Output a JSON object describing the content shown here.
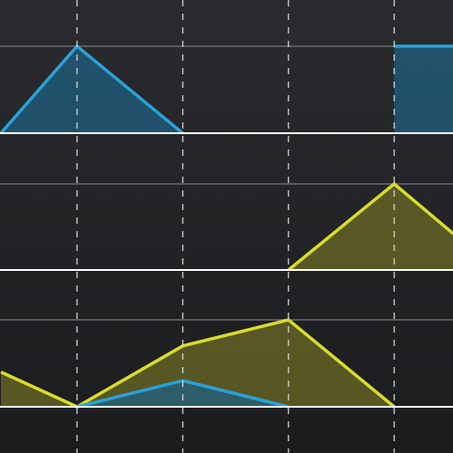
{
  "colors": {
    "background_top": "#2a2b2e",
    "background_bottom": "#1b1c1e",
    "blue": "#2aa1d8",
    "blue_fill": "#1f5f80",
    "yellow": "#d9dc2e",
    "yellow_fill": "#6b6b25",
    "band_guide": "#6a6b6e",
    "baseline": "#ffffff",
    "vertical_dash": "#d8d8d8"
  },
  "chart_data": {
    "type": "area",
    "x": [
      -0.72,
      0,
      1,
      2,
      3,
      3.56
    ],
    "ylim": [
      0,
      1
    ],
    "grid": {
      "vertical_dashed_at_x": [
        0,
        1,
        2,
        3
      ],
      "horizontal_guides_per_band": true
    },
    "panels": [
      {
        "series": [
          {
            "color_key": "blue",
            "values": [
              0,
              1,
              0,
              null,
              1,
              1
            ],
            "fill": true,
            "gap_after_index": 2,
            "resume_at_x": 2
          }
        ]
      },
      {
        "series": [
          {
            "color_key": "yellow",
            "values": [
              null,
              null,
              null,
              0,
              1,
              0.42
            ],
            "fill": true
          }
        ]
      },
      {
        "series": [
          {
            "color_key": "yellow",
            "values": [
              0.4,
              0,
              0.7,
              1,
              0,
              null
            ],
            "fill": true
          },
          {
            "color_key": "blue",
            "values": [
              null,
              0,
              0.3,
              0,
              null,
              null
            ],
            "fill": true
          }
        ]
      }
    ]
  }
}
